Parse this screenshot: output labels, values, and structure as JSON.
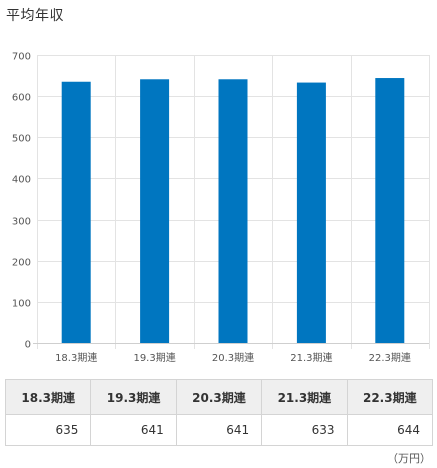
{
  "title": "平均年収",
  "unit": "（万円）",
  "chart_data": {
    "type": "bar",
    "categories": [
      "18.3期連",
      "19.3期連",
      "20.3期連",
      "21.3期連",
      "22.3期連"
    ],
    "values": [
      635,
      641,
      641,
      633,
      644
    ],
    "ylim": [
      0,
      700
    ],
    "yticks": [
      0,
      100,
      200,
      300,
      400,
      500,
      600,
      700
    ],
    "grid": true,
    "bar_color": "#0076C0",
    "grid_color": "#e3e3e3"
  },
  "table": {
    "headers": [
      "18.3期連",
      "19.3期連",
      "20.3期連",
      "21.3期連",
      "22.3期連"
    ],
    "values": [
      "635",
      "641",
      "641",
      "633",
      "644"
    ]
  }
}
